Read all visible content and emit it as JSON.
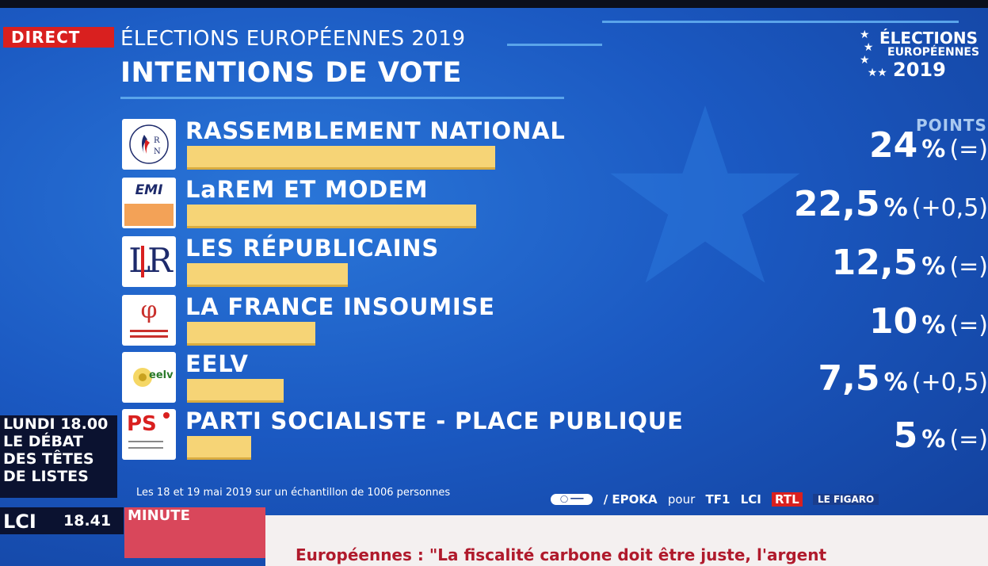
{
  "header": {
    "live_label": "DIRECT",
    "subtitle": "ÉLECTIONS EUROPÉENNES 2019",
    "title": "INTENTIONS DE VOTE",
    "corner_logo": {
      "line1": "ÉLECTIONS",
      "line2": "EUROPÉENNES",
      "line3": "2019"
    },
    "points_label": "POINTS"
  },
  "chart_data": {
    "type": "bar",
    "title": "INTENTIONS DE VOTE",
    "categories": [
      "RASSEMBLEMENT NATIONAL",
      "LaREM ET MODEM",
      "LES RÉPUBLICAINS",
      "LA FRANCE INSOUMISE",
      "EELV",
      "PARTI SOCIALISTE - PLACE PUBLIQUE"
    ],
    "values": [
      24,
      22.5,
      12.5,
      10,
      7.5,
      5
    ],
    "value_labels": [
      "24",
      "22,5",
      "12,5",
      "10",
      "7,5",
      "5"
    ],
    "unit": "%",
    "changes": [
      "(=)",
      "(+0,5)",
      "(=)",
      "(=)",
      "(+0,5)",
      "(=)"
    ],
    "bar_color": "#f6d476"
  },
  "parties": [
    {
      "name": "RASSEMBLEMENT NATIONAL",
      "logo_icon": "rn-flame-logo"
    },
    {
      "name": "LaREM ET MODEM",
      "logo_icon": "larem-modem-logo",
      "logo_text": "EMI"
    },
    {
      "name": "LES RÉPUBLICAINS",
      "logo_icon": "lr-logo",
      "logo_text": "LR"
    },
    {
      "name": "LA FRANCE INSOUMISE",
      "logo_icon": "lfi-phi-logo",
      "logo_text": "φ"
    },
    {
      "name": "EELV",
      "logo_icon": "eelv-sunflower-logo",
      "logo_text": "eelv"
    },
    {
      "name": "PARTI SOCIALISTE - PLACE PUBLIQUE",
      "logo_icon": "ps-rose-logo",
      "logo_text": "PS"
    }
  ],
  "footer": {
    "source": "Les 18 et 19 mai 2019 sur un échantillon de 1006 personnes",
    "partners": [
      "/ EPOKA",
      "pour",
      "TF1",
      "LCI",
      "RTL",
      "LE FIGARO"
    ]
  },
  "promo": {
    "line1": "LUNDI 18.00",
    "line2": "LE DÉBAT",
    "line3": "DES TÊTES",
    "line4": "DE LISTES"
  },
  "channel": {
    "logo": "LCI",
    "time": "18.41"
  },
  "ticker": {
    "section": "MINUTE",
    "headline": "Européennes : \"La fiscalité carbone doit être juste, l'argent"
  },
  "colors": {
    "background": "#1b59c2",
    "live_red": "#d9201f",
    "bar": "#f6d476",
    "ticker_text": "#b01a2c"
  }
}
